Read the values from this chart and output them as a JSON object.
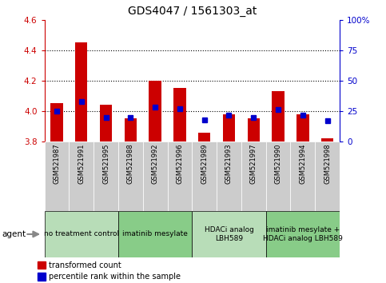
{
  "title": "GDS4047 / 1561303_at",
  "samples": [
    "GSM521987",
    "GSM521991",
    "GSM521995",
    "GSM521988",
    "GSM521992",
    "GSM521996",
    "GSM521989",
    "GSM521993",
    "GSM521997",
    "GSM521990",
    "GSM521994",
    "GSM521998"
  ],
  "red_values": [
    4.05,
    4.45,
    4.04,
    3.95,
    4.2,
    4.15,
    3.86,
    3.98,
    3.95,
    4.13,
    3.98,
    3.82
  ],
  "blue_values": [
    25,
    33,
    20,
    20,
    28,
    27,
    18,
    22,
    20,
    26,
    22,
    17
  ],
  "y_min": 3.8,
  "y_max": 4.6,
  "y_ticks": [
    3.8,
    4.0,
    4.2,
    4.4,
    4.6
  ],
  "right_y_ticks": [
    0,
    25,
    50,
    75,
    100
  ],
  "right_y_labels": [
    "0",
    "25",
    "50",
    "75",
    "100%"
  ],
  "grid_lines": [
    4.0,
    4.2,
    4.4
  ],
  "bar_color": "#cc0000",
  "blue_color": "#0000cc",
  "agent_groups": [
    {
      "label": "no treatment control",
      "start": 0,
      "end": 3,
      "color": "#b8ddb8"
    },
    {
      "label": "imatinib mesylate",
      "start": 3,
      "end": 6,
      "color": "#88cc88"
    },
    {
      "label": "HDACi analog\nLBH589",
      "start": 6,
      "end": 9,
      "color": "#b8ddb8"
    },
    {
      "label": "imatinib mesylate +\nHDACi analog LBH589",
      "start": 9,
      "end": 12,
      "color": "#88cc88"
    }
  ],
  "legend_red_label": "transformed count",
  "legend_blue_label": "percentile rank within the sample",
  "agent_label": "agent",
  "bar_width": 0.5,
  "background_color": "#ffffff",
  "tick_color_left": "#cc0000",
  "tick_color_right": "#0000cc",
  "sample_bg_color": "#cccccc",
  "title_fontsize": 10
}
